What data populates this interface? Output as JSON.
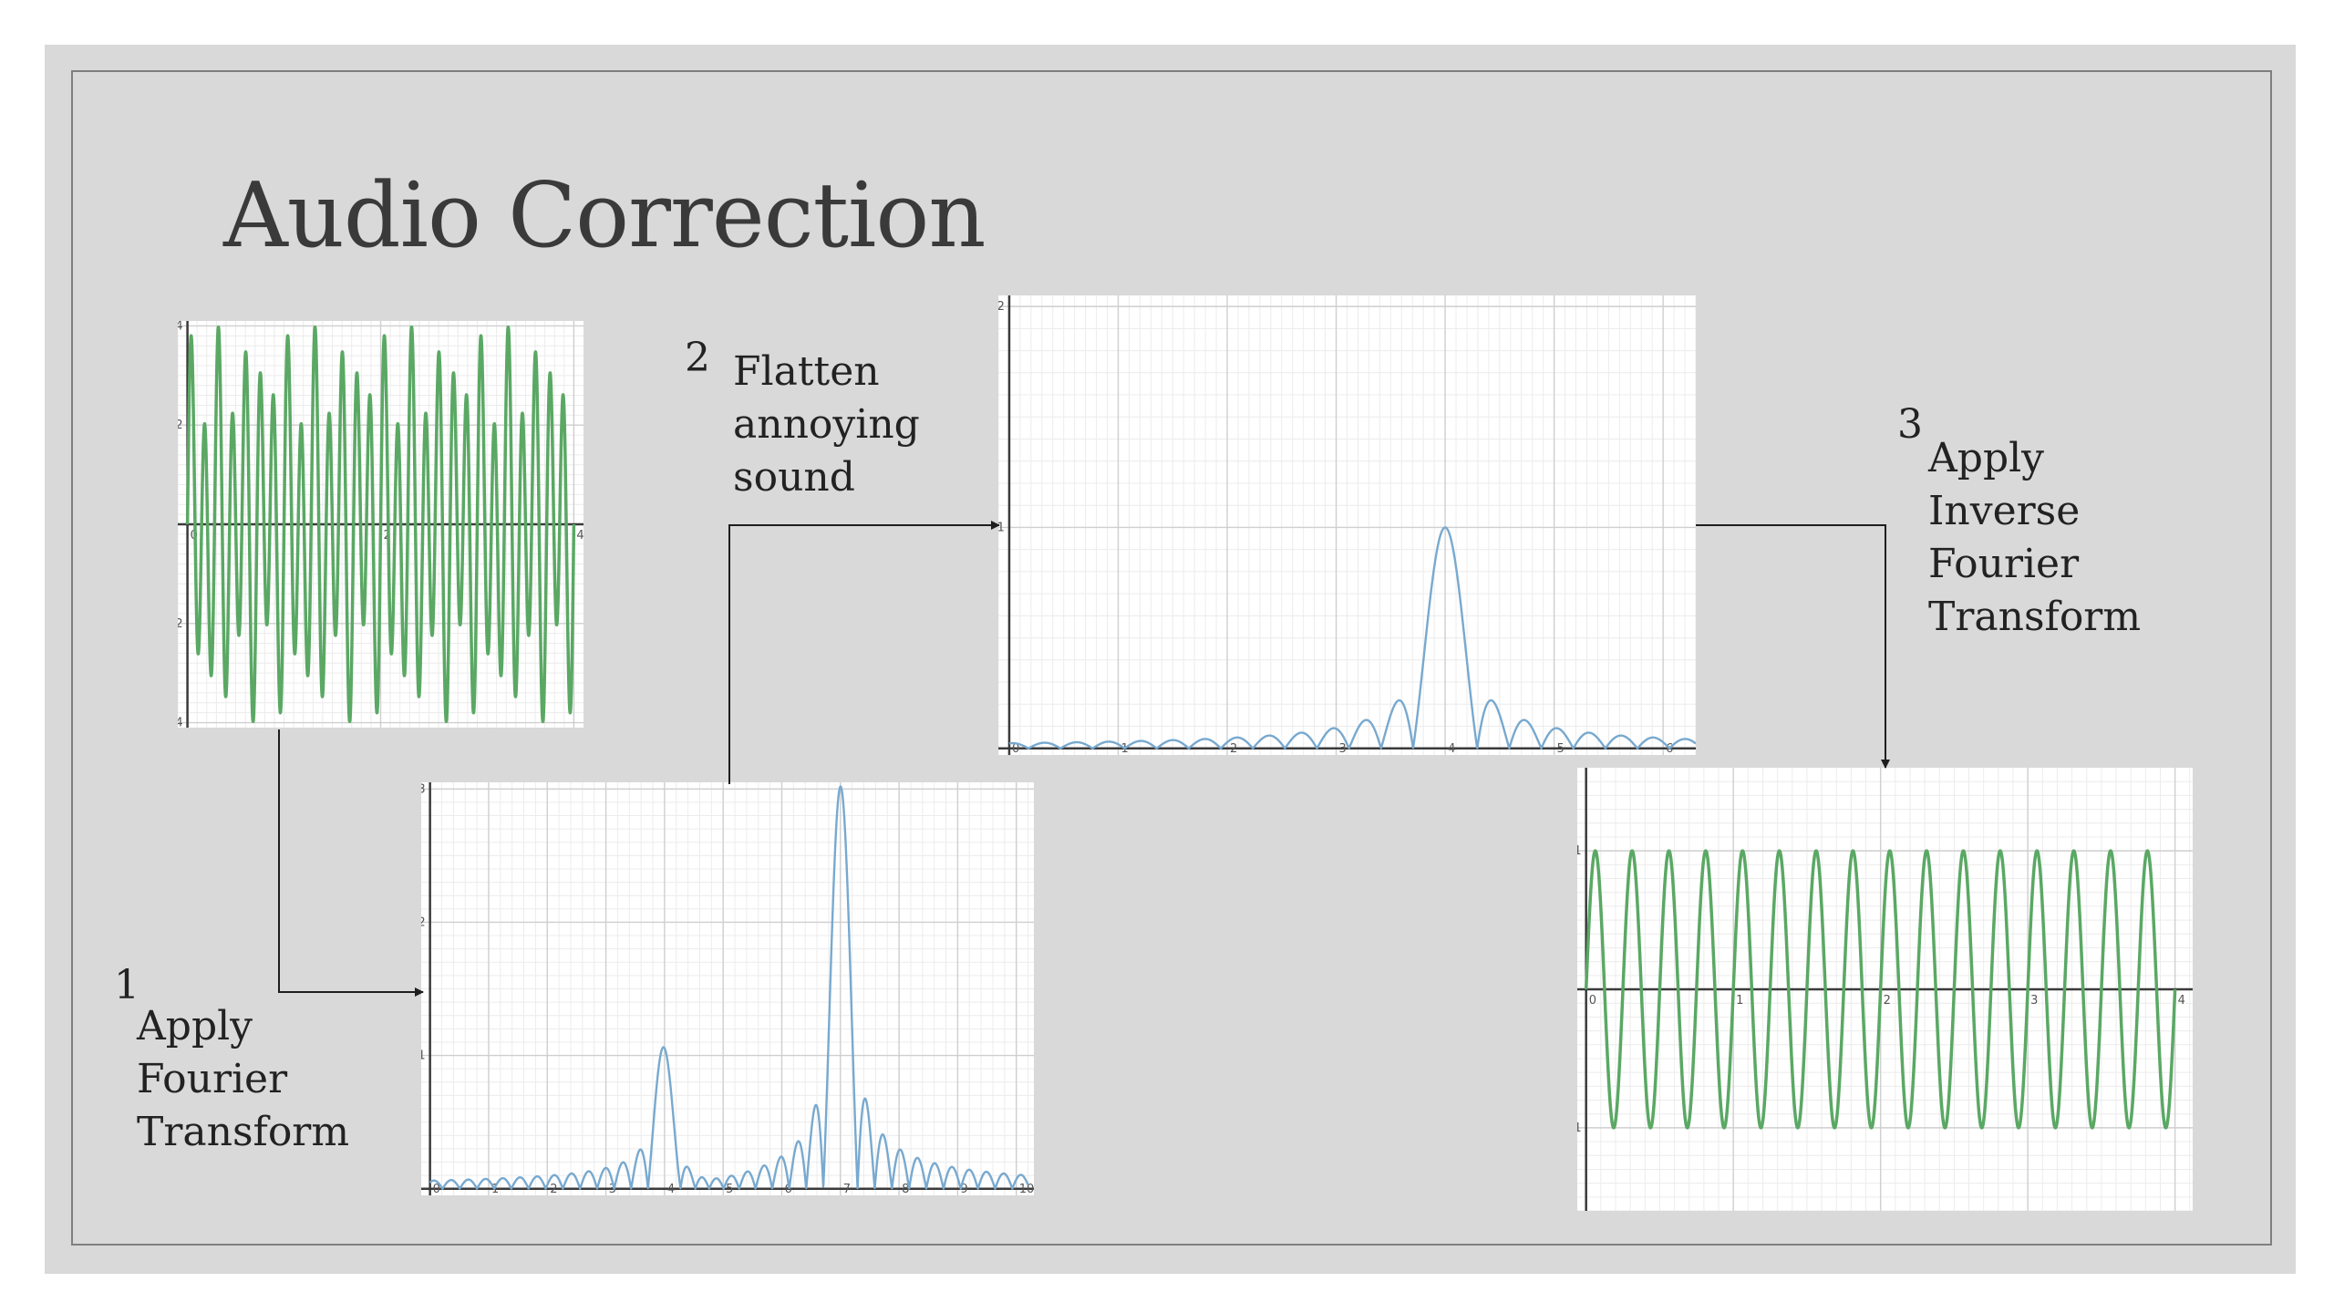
{
  "title": "Audio Correction",
  "steps": [
    {
      "number": "1",
      "lines": [
        "Apply",
        "Fourier",
        "Transform"
      ]
    },
    {
      "number": "2",
      "lines": [
        "Flatten",
        "annoying",
        "sound"
      ]
    },
    {
      "number": "3",
      "lines": [
        "Apply",
        "Inverse",
        "Fourier",
        "Transform"
      ]
    }
  ],
  "colors": {
    "green": "#5aa864",
    "blue": "#78a9cf",
    "grid_minor": "#ececec",
    "grid_major": "#cfcfcf",
    "axis": "#3a3a3a",
    "arrow": "#1e1e1e"
  },
  "chart_data": [
    {
      "id": "signal-original",
      "type": "line",
      "description_free": true,
      "xlim": [
        -0.1,
        4.1
      ],
      "ylim": [
        -4.1,
        4.1
      ],
      "x_ticks": [
        {
          "v": 0,
          "l": "0"
        },
        {
          "v": 2,
          "l": "2"
        },
        {
          "v": 4,
          "l": "4"
        }
      ],
      "y_ticks": [
        {
          "v": 4,
          "l": "4"
        },
        {
          "v": 2,
          "l": "2"
        },
        {
          "v": -2,
          "l": "-2"
        },
        {
          "v": -4,
          "l": "-4"
        }
      ],
      "components": [
        {
          "amp": 1,
          "freq": 4
        },
        {
          "amp": 3,
          "freq": 7
        }
      ],
      "x_range": [
        0,
        4
      ],
      "color": "green"
    },
    {
      "id": "spectrum-original",
      "type": "line",
      "xlim": [
        -0.15,
        10.3
      ],
      "ylim": [
        -0.05,
        3.05
      ],
      "x_ticks": [
        {
          "v": 0,
          "l": "0"
        },
        {
          "v": 1,
          "l": "1"
        },
        {
          "v": 2,
          "l": "2"
        },
        {
          "v": 3,
          "l": "3"
        },
        {
          "v": 4,
          "l": "4"
        },
        {
          "v": 5,
          "l": "5"
        },
        {
          "v": 6,
          "l": "6"
        },
        {
          "v": 7,
          "l": "7"
        },
        {
          "v": 8,
          "l": "8"
        },
        {
          "v": 9,
          "l": "9"
        },
        {
          "v": 10,
          "l": "10"
        }
      ],
      "y_ticks": [
        {
          "v": 3,
          "l": "3"
        },
        {
          "v": 2,
          "l": "2"
        },
        {
          "v": 1,
          "l": "1"
        }
      ],
      "peaks": [
        {
          "freq": 4,
          "amp": 1
        },
        {
          "freq": 7,
          "amp": 3
        }
      ],
      "x_range": [
        0,
        10.2
      ],
      "color": "blue"
    },
    {
      "id": "spectrum-filtered",
      "type": "line",
      "xlim": [
        -0.1,
        6.3
      ],
      "ylim": [
        -0.03,
        2.05
      ],
      "x_ticks": [
        {
          "v": 0,
          "l": "0"
        },
        {
          "v": 1,
          "l": "1"
        },
        {
          "v": 2,
          "l": "2"
        },
        {
          "v": 3,
          "l": "3"
        },
        {
          "v": 4,
          "l": "4"
        },
        {
          "v": 5,
          "l": "5"
        },
        {
          "v": 6,
          "l": "6"
        }
      ],
      "y_ticks": [
        {
          "v": 2,
          "l": "2"
        },
        {
          "v": 1,
          "l": "1"
        }
      ],
      "peaks": [
        {
          "freq": 4,
          "amp": 1
        }
      ],
      "x_range": [
        0,
        6.3
      ],
      "color": "blue"
    },
    {
      "id": "signal-corrected",
      "type": "line",
      "xlim": [
        -0.06,
        4.12
      ],
      "ylim": [
        -1.6,
        1.6
      ],
      "x_ticks": [
        {
          "v": 0,
          "l": "0"
        },
        {
          "v": 1,
          "l": "1"
        },
        {
          "v": 2,
          "l": "2"
        },
        {
          "v": 3,
          "l": "3"
        },
        {
          "v": 4,
          "l": "4"
        }
      ],
      "y_ticks": [
        {
          "v": 1,
          "l": "1"
        },
        {
          "v": -1,
          "l": "-1"
        }
      ],
      "components": [
        {
          "amp": 1,
          "freq": 4
        }
      ],
      "x_range": [
        0,
        4
      ],
      "color": "green"
    }
  ]
}
